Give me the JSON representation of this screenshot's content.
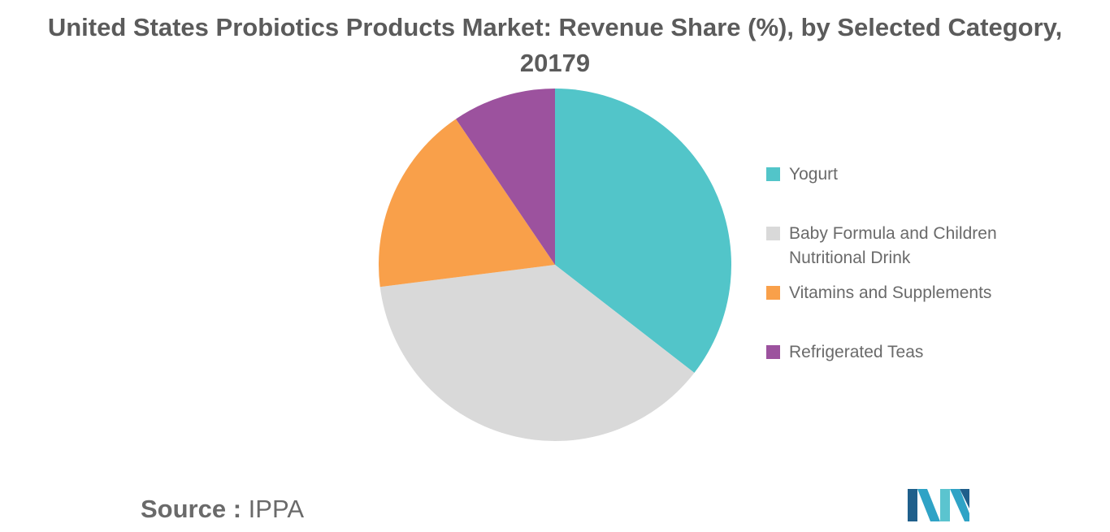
{
  "chart_data": {
    "type": "pie",
    "title": "United States Probiotics Products Market: Revenue Share (%), by Selected Category, 20179",
    "slices": [
      {
        "label": "Yogurt",
        "value": 35.5,
        "color": "#52c5c9"
      },
      {
        "label": "Baby Formula and Children Nutritional Drink",
        "value": 37.5,
        "color": "#d9d9d9"
      },
      {
        "label": "Vitamins and Supplements",
        "value": 17.5,
        "color": "#f9a04a"
      },
      {
        "label": "Refrigerated Teas",
        "value": 9.5,
        "color": "#9c529e"
      }
    ],
    "start_angle_deg": 0,
    "direction": "clockwise",
    "legend_position": "right"
  },
  "source": {
    "key": "Source :",
    "value": "IPPA"
  },
  "logo": {
    "colors": [
      "#1f5f8b",
      "#2fa3c6",
      "#5bc4cf"
    ]
  }
}
